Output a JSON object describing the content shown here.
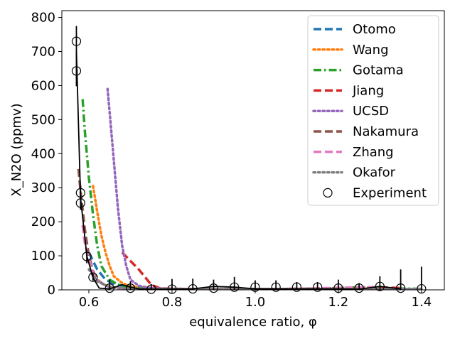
{
  "chart_data": {
    "type": "line",
    "xlabel": "equivalence ratio, φ",
    "ylabel": "X_N2O (ppmv)",
    "xlim": [
      0.535,
      1.455
    ],
    "ylim": [
      0,
      820
    ],
    "xticks": [
      0.6,
      0.8,
      1.0,
      1.2,
      1.4
    ],
    "xtick_labels": [
      "0.6",
      "0.8",
      "1.0",
      "1.2",
      "1.4"
    ],
    "yticks": [
      0,
      100,
      200,
      300,
      400,
      500,
      600,
      700,
      800
    ],
    "ytick_labels": [
      "0",
      "100",
      "200",
      "300",
      "400",
      "500",
      "600",
      "700",
      "800"
    ],
    "legend_position": "top-right",
    "series": [
      {
        "name": "Otomo",
        "color": "#1f77b4",
        "dash": "dashed",
        "x": [
          0.6,
          0.62,
          0.64,
          0.66,
          0.68,
          0.7,
          0.75,
          0.8,
          0.9,
          1.0,
          1.1,
          1.2,
          1.3,
          1.4
        ],
        "y": [
          110,
          60,
          30,
          18,
          12,
          8,
          4,
          3,
          2,
          2,
          2,
          2,
          2,
          2
        ]
      },
      {
        "name": "Wang",
        "color": "#ff7f0e",
        "dash": "dotted",
        "x": [
          0.61,
          0.62,
          0.63,
          0.64,
          0.65,
          0.66,
          0.68,
          0.7,
          0.75,
          0.8,
          0.9,
          1.0,
          1.2,
          1.4
        ],
        "y": [
          305,
          230,
          160,
          110,
          70,
          40,
          20,
          10,
          5,
          3,
          2,
          2,
          2,
          2
        ]
      },
      {
        "name": "Gotama",
        "color": "#2ca02c",
        "dash": "dashdot",
        "x": [
          0.585,
          0.59,
          0.6,
          0.61,
          0.62,
          0.63,
          0.65,
          0.67,
          0.7,
          0.75,
          0.8,
          0.9,
          1.0,
          1.1,
          1.2,
          1.25,
          1.3,
          1.4
        ],
        "y": [
          560,
          470,
          330,
          220,
          130,
          70,
          30,
          15,
          8,
          4,
          3,
          2,
          2,
          3,
          5,
          8,
          5,
          3
        ]
      },
      {
        "name": "Jiang",
        "color": "#d62728",
        "dash": "dashed",
        "x": [
          0.68,
          0.7,
          0.72,
          0.74,
          0.75,
          0.77,
          0.8,
          0.9,
          1.0,
          1.1,
          1.2,
          1.3,
          1.35
        ],
        "y": [
          110,
          85,
          60,
          30,
          15,
          5,
          3,
          2,
          2,
          3,
          5,
          8,
          5
        ]
      },
      {
        "name": "UCSD",
        "color": "#9467bd",
        "dash": "dotted",
        "x": [
          0.645,
          0.65,
          0.66,
          0.67,
          0.68,
          0.69,
          0.7,
          0.72,
          0.75,
          0.8,
          0.9,
          1.0,
          1.1,
          1.2,
          1.3,
          1.4
        ],
        "y": [
          590,
          520,
          380,
          240,
          130,
          70,
          30,
          12,
          5,
          3,
          2,
          2,
          2,
          2,
          2,
          2
        ]
      },
      {
        "name": "Nakamura",
        "color": "#8c564b",
        "dash": "dashed",
        "x": [
          0.575,
          0.58,
          0.59,
          0.6,
          0.61,
          0.62,
          0.64,
          0.66,
          0.7,
          0.75,
          0.8,
          0.9,
          1.0,
          1.1,
          1.2,
          1.3
        ],
        "y": [
          355,
          290,
          180,
          100,
          55,
          30,
          12,
          6,
          3,
          2,
          2,
          2,
          2,
          3,
          5,
          6
        ]
      },
      {
        "name": "Zhang",
        "color": "#e377c2",
        "dash": "dashed",
        "x": [
          0.585,
          0.59,
          0.6,
          0.61,
          0.62,
          0.64,
          0.66,
          0.7,
          0.75,
          0.8,
          0.9,
          1.0,
          1.1,
          1.2,
          1.3
        ],
        "y": [
          190,
          140,
          90,
          50,
          28,
          12,
          5,
          3,
          2,
          2,
          2,
          2,
          3,
          6,
          8
        ]
      },
      {
        "name": "Okafor",
        "color": "#7f7f7f",
        "dash": "dotted",
        "x": [
          0.6,
          0.62,
          0.65,
          0.7,
          0.8,
          0.9,
          1.0,
          1.1,
          1.2,
          1.3,
          1.4
        ],
        "y": [
          60,
          25,
          8,
          3,
          2,
          2,
          2,
          2,
          2,
          2,
          2
        ]
      }
    ],
    "experiment": {
      "name": "Experiment",
      "color": "#000000",
      "x": [
        0.57,
        0.57,
        0.58,
        0.58,
        0.595,
        0.61,
        0.65,
        0.7,
        0.75,
        0.8,
        0.85,
        0.9,
        0.95,
        1.0,
        1.05,
        1.1,
        1.15,
        1.2,
        1.25,
        1.3,
        1.35,
        1.4
      ],
      "y": [
        730,
        643,
        285,
        255,
        98,
        37,
        5,
        5,
        2,
        2,
        3,
        5,
        8,
        8,
        8,
        8,
        8,
        5,
        5,
        10,
        5,
        3
      ],
      "err": [
        45,
        45,
        20,
        20,
        20,
        10,
        25,
        20,
        15,
        30,
        30,
        25,
        30,
        20,
        20,
        15,
        15,
        25,
        15,
        30,
        55,
        65
      ]
    },
    "experiment_line": {
      "x": [
        0.57,
        0.58,
        0.595,
        0.61,
        0.625,
        0.65,
        0.68,
        0.7,
        0.72,
        0.75,
        0.8,
        0.85,
        0.9,
        0.95,
        1.0,
        1.1,
        1.2,
        1.25,
        1.3,
        1.35
      ],
      "y": [
        700,
        270,
        100,
        35,
        5,
        3,
        15,
        8,
        3,
        2,
        2,
        3,
        10,
        8,
        3,
        3,
        3,
        2,
        10,
        3
      ]
    }
  }
}
